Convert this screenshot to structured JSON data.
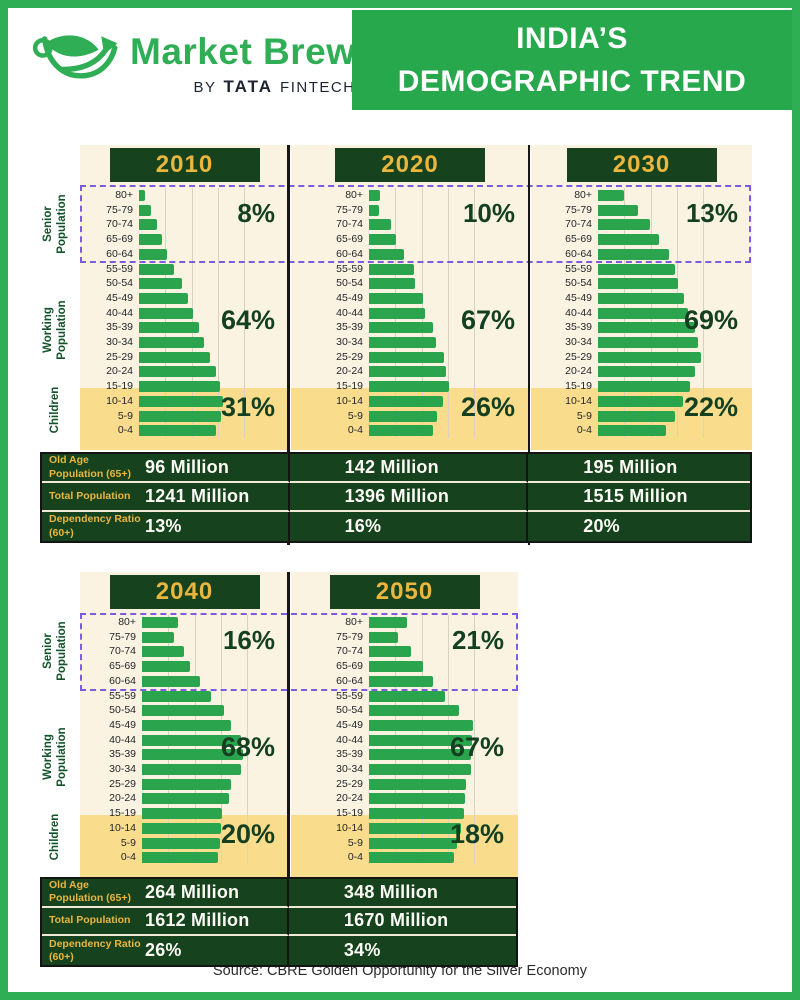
{
  "header": {
    "brand": "Market Brew",
    "byline_by": "BY",
    "byline_tata": "TATA",
    "byline_fintech": "FINTECH",
    "title_line1": "INDIA’S",
    "title_line2": "DEMOGRAPHIC TREND"
  },
  "band_labels": [
    "Senior Population",
    "Working Population",
    "Children"
  ],
  "stats_labels": [
    "Old Age Population (65+)",
    "Total Population",
    "Dependency Ratio (60+)"
  ],
  "stat_keys": [
    "old_age_population_65plus",
    "total_population",
    "dependency_ratio_60plus"
  ],
  "colors": {
    "brand_green": "#2fae55",
    "title_green": "#27a84c",
    "dark_green": "#16421e",
    "gold": "#eab63d",
    "cream": "#faf3e2",
    "children_yellow": "#f9dd8d",
    "bar_green": "#2aa54d",
    "pct_green": "#143f20",
    "senior_box_purple": "#7d5bdc"
  },
  "chart_data": [
    {
      "type": "bar",
      "orientation": "horizontal",
      "title": "2010",
      "year": "2010",
      "categories": [
        "80+",
        "75-79",
        "70-74",
        "65-69",
        "60-64",
        "55-59",
        "50-54",
        "45-49",
        "40-44",
        "35-39",
        "30-34",
        "25-29",
        "20-24",
        "15-19",
        "10-14",
        "5-9",
        "0-4"
      ],
      "values": [
        6,
        11,
        17,
        22,
        27,
        33,
        41,
        47,
        51,
        57,
        62,
        68,
        73,
        77,
        80,
        78,
        73
      ],
      "value_unit": "relative bar length, % of axis max",
      "senior_pct": "8%",
      "working_pct": "64%",
      "children_pct": "31%",
      "stats": {
        "old_age_population_65plus": "96 Million",
        "total_population": "1241 Million",
        "dependency_ratio_60plus": "13%"
      }
    },
    {
      "type": "bar",
      "orientation": "horizontal",
      "title": "2020",
      "year": "2020",
      "categories": [
        "80+",
        "75-79",
        "70-74",
        "65-69",
        "60-64",
        "55-59",
        "50-54",
        "45-49",
        "40-44",
        "35-39",
        "30-34",
        "25-29",
        "20-24",
        "15-19",
        "10-14",
        "5-9",
        "0-4"
      ],
      "values": [
        10,
        9,
        21,
        26,
        33,
        43,
        44,
        51,
        53,
        61,
        64,
        71,
        73,
        76,
        70,
        65,
        61
      ],
      "value_unit": "relative bar length, % of axis max",
      "senior_pct": "10%",
      "working_pct": "67%",
      "children_pct": "26%",
      "stats": {
        "old_age_population_65plus": "142 Million",
        "total_population": "1396 Million",
        "dependency_ratio_60plus": "16%"
      }
    },
    {
      "type": "bar",
      "orientation": "horizontal",
      "title": "2030",
      "year": "2030",
      "categories": [
        "80+",
        "75-79",
        "70-74",
        "65-69",
        "60-64",
        "55-59",
        "50-54",
        "45-49",
        "40-44",
        "35-39",
        "30-34",
        "25-29",
        "20-24",
        "15-19",
        "10-14",
        "5-9",
        "0-4"
      ],
      "values": [
        25,
        38,
        49,
        58,
        68,
        73,
        76,
        82,
        86,
        92,
        95,
        98,
        92,
        88,
        81,
        73,
        65
      ],
      "value_unit": "relative bar length, % of axis max",
      "senior_pct": "13%",
      "working_pct": "69%",
      "children_pct": "22%",
      "stats": {
        "old_age_population_65plus": "195 Million",
        "total_population": "1515 Million",
        "dependency_ratio_60plus": "20%"
      }
    },
    {
      "type": "bar",
      "orientation": "horizontal",
      "title": "2040",
      "year": "2040",
      "categories": [
        "80+",
        "75-79",
        "70-74",
        "65-69",
        "60-64",
        "55-59",
        "50-54",
        "45-49",
        "40-44",
        "35-39",
        "30-34",
        "25-29",
        "20-24",
        "15-19",
        "10-14",
        "5-9",
        "0-4"
      ],
      "values": [
        34,
        30,
        40,
        46,
        55,
        66,
        78,
        85,
        94,
        96,
        94,
        85,
        83,
        76,
        75,
        74,
        72
      ],
      "value_unit": "relative bar length, % of axis max",
      "senior_pct": "16%",
      "working_pct": "68%",
      "children_pct": "20%",
      "stats": {
        "old_age_population_65plus": "264 Million",
        "total_population": "1612 Million",
        "dependency_ratio_60plus": "26%"
      }
    },
    {
      "type": "bar",
      "orientation": "horizontal",
      "title": "2050",
      "year": "2050",
      "categories": [
        "80+",
        "75-79",
        "70-74",
        "65-69",
        "60-64",
        "55-59",
        "50-54",
        "45-49",
        "40-44",
        "35-39",
        "30-34",
        "25-29",
        "20-24",
        "15-19",
        "10-14",
        "5-9",
        "0-4"
      ],
      "values": [
        36,
        28,
        40,
        51,
        61,
        72,
        86,
        99,
        98,
        97,
        97,
        92,
        91,
        90,
        88,
        84,
        81
      ],
      "value_unit": "relative bar length, % of axis max",
      "senior_pct": "21%",
      "working_pct": "67%",
      "children_pct": "18%",
      "stats": {
        "old_age_population_65plus": "348 Million",
        "total_population": "1670 Million",
        "dependency_ratio_60plus": "34%"
      }
    }
  ],
  "footer": {
    "source": "Source: CBRE Golden Opportunity for the Silver Economy"
  }
}
